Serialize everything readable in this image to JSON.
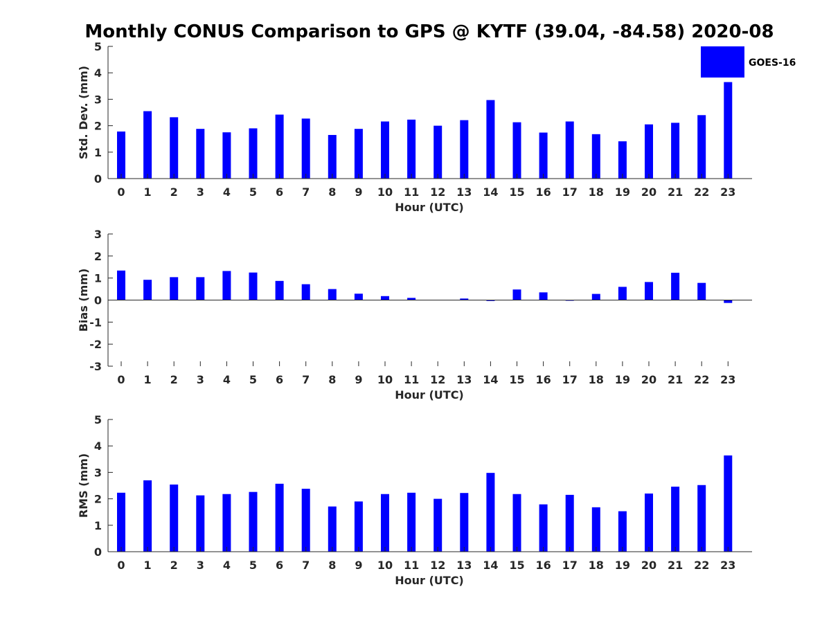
{
  "title": "Monthly CONUS Comparison to GPS @ KYTF (39.04, -84.58) 2020-08",
  "legend": {
    "label": "GOES-16",
    "placement": "top-right"
  },
  "colors": {
    "bar": "#0000ff",
    "axis": "#262626",
    "text": "#262626"
  },
  "chart_data": [
    {
      "type": "bar",
      "xlabel": "Hour (UTC)",
      "ylabel": "Std. Dev. (mm)",
      "ylim": [
        0,
        5
      ],
      "yticks": [
        "0",
        "1",
        "2",
        "3",
        "4",
        "5"
      ],
      "categories": [
        "0",
        "1",
        "2",
        "3",
        "4",
        "5",
        "6",
        "7",
        "8",
        "9",
        "10",
        "11",
        "12",
        "13",
        "14",
        "15",
        "16",
        "17",
        "18",
        "19",
        "20",
        "21",
        "22",
        "23"
      ],
      "series": [
        {
          "name": "GOES-16",
          "values": [
            1.78,
            2.55,
            2.32,
            1.88,
            1.75,
            1.9,
            2.42,
            2.27,
            1.65,
            1.88,
            2.16,
            2.23,
            2.0,
            2.21,
            2.97,
            2.13,
            1.74,
            2.16,
            1.68,
            1.41,
            2.05,
            2.11,
            2.4,
            3.65
          ]
        }
      ]
    },
    {
      "type": "bar",
      "xlabel": "Hour (UTC)",
      "ylabel": "Bias (mm)",
      "ylim": [
        -3,
        3
      ],
      "yticks": [
        "-3",
        "-2",
        "-1",
        "0",
        "1",
        "2",
        "3"
      ],
      "categories": [
        "0",
        "1",
        "2",
        "3",
        "4",
        "5",
        "6",
        "7",
        "8",
        "9",
        "10",
        "11",
        "12",
        "13",
        "14",
        "15",
        "16",
        "17",
        "18",
        "19",
        "20",
        "21",
        "22",
        "23"
      ],
      "series": [
        {
          "name": "GOES-16",
          "values": [
            1.34,
            0.92,
            1.04,
            1.04,
            1.32,
            1.25,
            0.87,
            0.72,
            0.5,
            0.29,
            0.18,
            0.1,
            0.0,
            0.07,
            -0.04,
            0.48,
            0.35,
            -0.03,
            0.28,
            0.6,
            0.82,
            1.24,
            0.78,
            -0.13
          ]
        }
      ]
    },
    {
      "type": "bar",
      "xlabel": "Hour (UTC)",
      "ylabel": "RMS (mm)",
      "ylim": [
        0,
        5
      ],
      "yticks": [
        "0",
        "1",
        "2",
        "3",
        "4",
        "5"
      ],
      "categories": [
        "0",
        "1",
        "2",
        "3",
        "4",
        "5",
        "6",
        "7",
        "8",
        "9",
        "10",
        "11",
        "12",
        "13",
        "14",
        "15",
        "16",
        "17",
        "18",
        "19",
        "20",
        "21",
        "22",
        "23"
      ],
      "series": [
        {
          "name": "GOES-16",
          "values": [
            2.23,
            2.7,
            2.54,
            2.13,
            2.18,
            2.26,
            2.57,
            2.38,
            1.71,
            1.9,
            2.18,
            2.23,
            2.0,
            2.22,
            2.98,
            2.18,
            1.79,
            2.15,
            1.68,
            1.53,
            2.2,
            2.46,
            2.52,
            3.64
          ]
        }
      ]
    }
  ]
}
